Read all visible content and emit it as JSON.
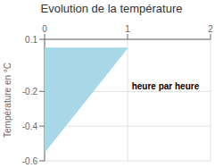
{
  "chart_data": {
    "type": "area",
    "title": "Evolution de la température",
    "ylabel": "Température en °C",
    "x": [
      0,
      1,
      0
    ],
    "values": [
      0.05,
      0.05,
      -0.55
    ],
    "color": "#a8d8e8",
    "xlim": [
      0,
      2
    ],
    "ylim": [
      -0.6,
      0.1
    ],
    "xticks": [
      0,
      1,
      2
    ],
    "yticks": [
      0.1,
      -0.2,
      -0.4,
      -0.6
    ],
    "grid": true,
    "annotations": [
      {
        "text": "heure par heure",
        "x": 1.05,
        "y": -0.17
      }
    ]
  }
}
